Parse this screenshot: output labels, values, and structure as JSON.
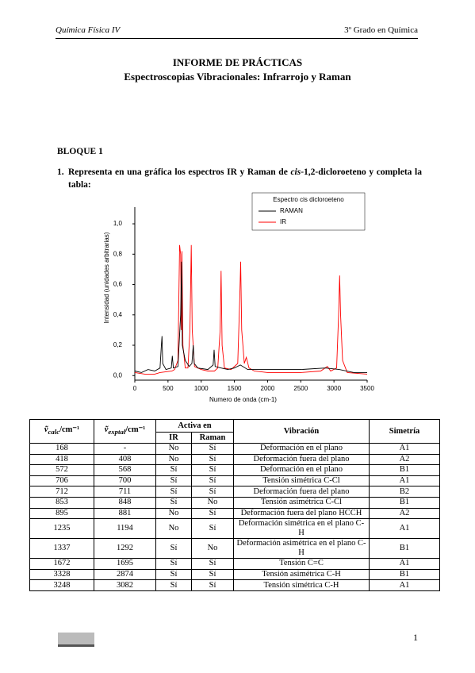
{
  "header": {
    "left": "Química Física IV",
    "right": "3º Grado en Química"
  },
  "title": "INFORME DE PRÁCTICAS",
  "subtitle": "Espectroscopias Vibracionales: Infrarrojo y Raman",
  "section": "BLOQUE 1",
  "question": {
    "number": "1.",
    "before": "Representa en una gráfica los espectros IR y Raman de ",
    "italic": "cis",
    "after": "-1,2-dicloroeteno y completa la tabla:"
  },
  "chart_data": {
    "type": "line",
    "xlabel": "Numero de onda (cm-1)",
    "ylabel": "Intensidad (unidades arbitrarias)",
    "legend_title": "Espectro cis dicloroeteno",
    "legend": "top-right",
    "grid": false,
    "xlim": [
      0,
      3500
    ],
    "xticks": [
      0,
      500,
      1000,
      1500,
      2000,
      2500,
      3000,
      3500
    ],
    "ylim": [
      -0.03,
      1.11
    ],
    "yticks": [
      {
        "value": 0,
        "label": "0,0"
      },
      {
        "value": 0.2,
        "label": "0,2"
      },
      {
        "value": 0.4,
        "label": "0,4"
      },
      {
        "value": 0.6,
        "label": "0,6"
      },
      {
        "value": 0.8,
        "label": "0,8"
      },
      {
        "value": 1.0,
        "label": "1,0"
      }
    ],
    "series": [
      {
        "name": "RAMAN",
        "color": "#000000",
        "x": [
          0,
          100,
          200,
          300,
          380,
          400,
          410,
          420,
          470,
          550,
          565,
          580,
          650,
          690,
          705,
          715,
          760,
          820,
          860,
          880,
          895,
          950,
          1100,
          1180,
          1195,
          1210,
          1300,
          1400,
          1500,
          1590,
          1700,
          2000,
          2500,
          2870,
          3080,
          3300,
          3500
        ],
        "values": [
          0.03,
          0.02,
          0.04,
          0.03,
          0.05,
          0.2,
          0.26,
          0.08,
          0.04,
          0.05,
          0.13,
          0.05,
          0.06,
          0.4,
          0.75,
          0.2,
          0.1,
          0.06,
          0.08,
          0.2,
          0.08,
          0.05,
          0.04,
          0.07,
          0.17,
          0.06,
          0.05,
          0.04,
          0.05,
          0.07,
          0.04,
          0.04,
          0.04,
          0.05,
          0.04,
          0.02,
          0.02
        ]
      },
      {
        "name": "IR",
        "color": "#ff0000",
        "x": [
          0,
          150,
          300,
          380,
          560,
          600,
          650,
          675,
          690,
          700,
          710,
          725,
          760,
          800,
          830,
          850,
          865,
          900,
          1000,
          1100,
          1200,
          1250,
          1285,
          1300,
          1315,
          1350,
          1450,
          1550,
          1580,
          1595,
          1610,
          1650,
          1680,
          1720,
          1800,
          2000,
          2500,
          2800,
          2900,
          2950,
          3040,
          3070,
          3085,
          3100,
          3130,
          3200,
          3500
        ],
        "values": [
          0.02,
          0.01,
          0.01,
          0.02,
          0.03,
          0.04,
          0.1,
          0.86,
          0.8,
          0.3,
          0.82,
          0.2,
          0.05,
          0.05,
          0.3,
          0.86,
          0.3,
          0.06,
          0.04,
          0.03,
          0.03,
          0.05,
          0.3,
          0.69,
          0.2,
          0.05,
          0.04,
          0.08,
          0.5,
          0.75,
          0.3,
          0.08,
          0.12,
          0.05,
          0.03,
          0.02,
          0.02,
          0.03,
          0.06,
          0.03,
          0.05,
          0.4,
          0.66,
          0.4,
          0.1,
          0.02,
          0.01
        ]
      }
    ]
  },
  "table": {
    "headers": [
      {
        "symbol": "ṽ",
        "sub": "calc",
        "unit": "/cm⁻¹"
      },
      {
        "symbol": "ṽ",
        "sub": "exptal",
        "unit": "/cm⁻¹"
      },
      "Activa en",
      "Vibración",
      "Simetría"
    ],
    "subheaders": [
      "IR",
      "Raman"
    ],
    "rows": [
      [
        168,
        "-",
        "No",
        "Sí",
        "Deformación en el plano",
        "A1"
      ],
      [
        418,
        408,
        "No",
        "Sí",
        "Deformación fuera del plano",
        "A2"
      ],
      [
        572,
        568,
        "Sí",
        "Sí",
        "Deformación en el plano",
        "B1"
      ],
      [
        706,
        700,
        "Sí",
        "Sí",
        "Tensión simétrica C-Cl",
        "A1"
      ],
      [
        712,
        711,
        "Sí",
        "Sí",
        "Deformación fuera del plano",
        "B2"
      ],
      [
        853,
        848,
        "Sí",
        "No",
        "Tensión asimétrica C-Cl",
        "B1"
      ],
      [
        895,
        881,
        "No",
        "Sí",
        "Deformación fuera del plano HCCH",
        "A2"
      ],
      [
        1235,
        1194,
        "No",
        "Sí",
        "Deformación simétrica en el plano C-H",
        "A1"
      ],
      [
        1337,
        1292,
        "Sí",
        "No",
        "Deformación asimétrica en el plano C-H",
        "B1"
      ],
      [
        1672,
        1695,
        "Sí",
        "Sí",
        "Tensión C=C",
        "A1"
      ],
      [
        3328,
        2874,
        "Sí",
        "Sí",
        "Tensión asimétrica C-H",
        "B1"
      ],
      [
        3248,
        3082,
        "Sí",
        "Sí",
        "Tensión simétrica C-H",
        "A1"
      ]
    ]
  },
  "footer": {
    "page": "1"
  }
}
